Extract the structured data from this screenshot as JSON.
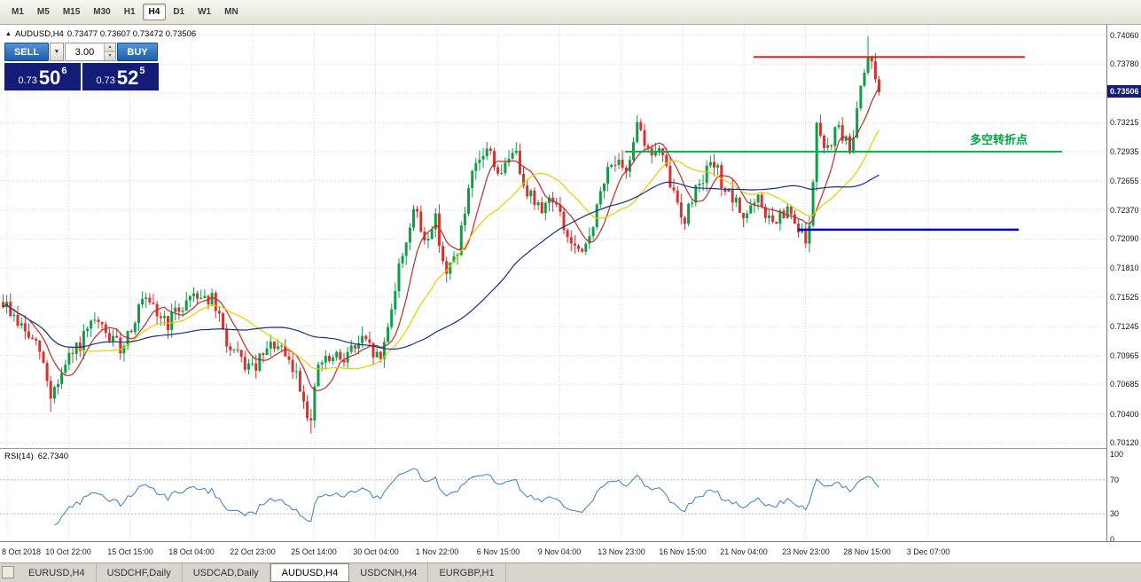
{
  "toolbar": {
    "timeframes": [
      "M1",
      "M5",
      "M15",
      "M30",
      "H1",
      "H4",
      "D1",
      "W1",
      "MN"
    ],
    "active_timeframe": "H4"
  },
  "chart": {
    "title_symbol": "AUDUSD,H4",
    "ohlc": "0.73477 0.73607 0.73472 0.73506",
    "annotation": {
      "text": "多空转折点",
      "color": "#00a344"
    }
  },
  "trade_panel": {
    "sell_label": "SELL",
    "buy_label": "BUY",
    "volume": "3.00",
    "sell_price": {
      "big_figure": "0.73",
      "pips": "50",
      "pipette": "6"
    },
    "buy_price": {
      "big_figure": "0.73",
      "pips": "52",
      "pipette": "5"
    }
  },
  "price_axis": {
    "ticks": [
      "0.74060",
      "0.73780",
      "0.73215",
      "0.72935",
      "0.72655",
      "0.72370",
      "0.72090",
      "0.71810",
      "0.71525",
      "0.71245",
      "0.70965",
      "0.70685",
      "0.70400",
      "0.70120"
    ],
    "badge": "0.73506"
  },
  "rsi": {
    "label": "RSI(14)",
    "value": "62.7340",
    "ticks": [
      "100",
      "70",
      "30",
      "0"
    ],
    "levels": [
      70,
      30
    ]
  },
  "time_axis": {
    "labels": [
      "8 Oct 2018",
      "10 Oct 22:00",
      "15 Oct 15:00",
      "18 Oct 04:00",
      "22 Oct 23:00",
      "25 Oct 14:00",
      "30 Oct 04:00",
      "1 Nov 22:00",
      "6 Nov 15:00",
      "9 Nov 04:00",
      "13 Nov 23:00",
      "16 Nov 15:00",
      "21 Nov 04:00",
      "23 Nov 23:00",
      "28 Nov 15:00",
      "3 Dec 07:00"
    ]
  },
  "bottom_tabs": {
    "tabs": [
      "EURUSD,H4",
      "USDCHF,Daily",
      "USDCAD,Daily",
      "AUDUSD,H4",
      "USDCNH,H4",
      "EURGBP,H1"
    ],
    "active": "AUDUSD,H4"
  },
  "chart_data": {
    "type": "candlestick",
    "symbol": "AUDUSD",
    "timeframe": "H4",
    "ylim": [
      0.7007,
      0.7416
    ],
    "y_grid": [
      0.7406,
      0.7378,
      0.735,
      0.73215,
      0.72935,
      0.72655,
      0.7237,
      0.7209,
      0.7181,
      0.71525,
      0.71245,
      0.70965,
      0.70685,
      0.704,
      0.7012
    ],
    "x_tick_labels": [
      "8 Oct 2018",
      "10 Oct 22:00",
      "15 Oct 15:00",
      "18 Oct 04:00",
      "22 Oct 23:00",
      "25 Oct 14:00",
      "30 Oct 04:00",
      "1 Nov 22:00",
      "6 Nov 15:00",
      "9 Nov 04:00",
      "13 Nov 23:00",
      "16 Nov 15:00",
      "21 Nov 04:00",
      "23 Nov 23:00",
      "28 Nov 15:00",
      "3 Dec 07:00"
    ],
    "x_grid_start": 8,
    "x_grid_step": 69.27,
    "num_candles": 240,
    "candle_area_fraction": 0.795,
    "noise": 0.0016,
    "wick": 0.0009,
    "grid_color": "#d7d7d7",
    "price_path": [
      [
        0,
        0.7148
      ],
      [
        10,
        0.71
      ],
      [
        13,
        0.7058
      ],
      [
        18,
        0.7092
      ],
      [
        25,
        0.7128
      ],
      [
        32,
        0.7103
      ],
      [
        38,
        0.7148
      ],
      [
        45,
        0.7128
      ],
      [
        52,
        0.7158
      ],
      [
        57,
        0.715
      ],
      [
        62,
        0.71
      ],
      [
        68,
        0.7082
      ],
      [
        74,
        0.7108
      ],
      [
        80,
        0.7078
      ],
      [
        84,
        0.7032
      ],
      [
        86,
        0.7088
      ],
      [
        92,
        0.7094
      ],
      [
        98,
        0.711
      ],
      [
        103,
        0.7092
      ],
      [
        108,
        0.718
      ],
      [
        112,
        0.7238
      ],
      [
        115,
        0.7208
      ],
      [
        118,
        0.7228
      ],
      [
        121,
        0.7172
      ],
      [
        124,
        0.72
      ],
      [
        128,
        0.7268
      ],
      [
        132,
        0.7298
      ],
      [
        136,
        0.7268
      ],
      [
        139,
        0.7298
      ],
      [
        143,
        0.7258
      ],
      [
        146,
        0.7238
      ],
      [
        150,
        0.725
      ],
      [
        154,
        0.721
      ],
      [
        158,
        0.719
      ],
      [
        162,
        0.7238
      ],
      [
        166,
        0.7288
      ],
      [
        170,
        0.7268
      ],
      [
        173,
        0.7328
      ],
      [
        176,
        0.7292
      ],
      [
        179,
        0.7295
      ],
      [
        183,
        0.7252
      ],
      [
        186,
        0.7228
      ],
      [
        190,
        0.7268
      ],
      [
        194,
        0.728
      ],
      [
        198,
        0.725
      ],
      [
        202,
        0.7232
      ],
      [
        206,
        0.7245
      ],
      [
        210,
        0.7222
      ],
      [
        214,
        0.7235
      ],
      [
        218,
        0.721
      ],
      [
        220,
        0.7215
      ],
      [
        222,
        0.732
      ],
      [
        224,
        0.7292
      ],
      [
        228,
        0.7318
      ],
      [
        231,
        0.7292
      ],
      [
        234,
        0.7358
      ],
      [
        236,
        0.7392
      ],
      [
        238,
        0.7366
      ],
      [
        239,
        0.7351
      ]
    ],
    "wick_overrides": [
      {
        "i": 13,
        "low": 0.7042
      },
      {
        "i": 84,
        "low": 0.7021
      },
      {
        "i": 236,
        "high": 0.7405
      }
    ],
    "levels": [
      {
        "name": "resistance",
        "color": "#e32222",
        "price": 0.7385,
        "x1": 0.681,
        "x2": 0.926,
        "width": 2
      },
      {
        "name": "pivot",
        "color": "#00b050",
        "price": 0.72935,
        "x1": 0.565,
        "x2": 0.96,
        "width": 2
      },
      {
        "name": "support",
        "color": "#0000cc",
        "price": 0.7218,
        "x1": 0.721,
        "x2": 0.921,
        "width": 2.5
      }
    ],
    "moving_averages": [
      {
        "period": 8,
        "color": "#c62828"
      },
      {
        "period": 21,
        "color": "#e3cf00"
      },
      {
        "period": 55,
        "color": "#1a2f86"
      }
    ],
    "up_color": "#0e9e45",
    "down_color": "#d93030",
    "rsi_period": 14,
    "rsi_color": "#3c7ebf",
    "current_price": 0.73506
  }
}
